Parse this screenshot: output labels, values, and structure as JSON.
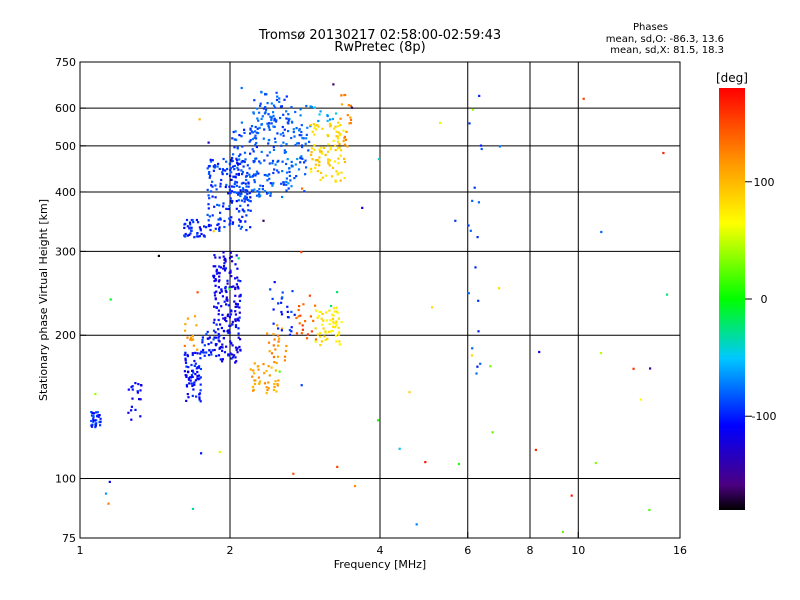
{
  "chart_data": {
    "type": "scatter",
    "title": "Tromsø 20130217 02:58:00-02:59:43",
    "subtitle": "RwPretec (8p)",
    "xlabel": "Frequency [MHz]",
    "ylabel": "Stationary phase Virtual Height [km]",
    "x_scale": "log",
    "y_scale": "log",
    "xlim": [
      1,
      16
    ],
    "ylim": [
      75,
      750
    ],
    "x_ticks": [
      "1",
      "2",
      "4",
      "6",
      "8",
      "10",
      "16"
    ],
    "x_tick_values": [
      1,
      2,
      4,
      6,
      8,
      10,
      16
    ],
    "y_ticks": [
      "75",
      "100",
      "200",
      "300",
      "400",
      "500",
      "600",
      "750"
    ],
    "y_tick_values": [
      75,
      100,
      200,
      300,
      400,
      500,
      600,
      750
    ],
    "x_gridlines": [
      2,
      4,
      6,
      8,
      10
    ],
    "y_gridlines": [
      100,
      200,
      300,
      400,
      500,
      600
    ],
    "grid": true,
    "colorbar": {
      "label": "[deg]",
      "range": [
        -180,
        180
      ],
      "ticks": [
        "100",
        "0",
        "-100"
      ],
      "tick_values": [
        100,
        0,
        -100
      ],
      "colormap": "rainbow"
    },
    "stats": {
      "heading": "Phases",
      "line_o": "mean, sd,O: -86.3, 13.6",
      "line_x": "mean, sd,X:  81.5, 18.3"
    },
    "clusters": [
      {
        "x": [
          1.05,
          1.1
        ],
        "y": [
          128,
          138
        ],
        "phase": -95,
        "n": 30
      },
      {
        "x": [
          1.25,
          1.35
        ],
        "y": [
          133,
          160
        ],
        "phase": -110,
        "n": 20
      },
      {
        "x": [
          1.62,
          1.75
        ],
        "y": [
          145,
          185
        ],
        "phase": -105,
        "n": 70
      },
      {
        "x": [
          1.62,
          1.75
        ],
        "y": [
          185,
          225
        ],
        "phase": 120,
        "n": 14
      },
      {
        "x": [
          1.75,
          1.9
        ],
        "y": [
          180,
          205
        ],
        "phase": -100,
        "n": 30
      },
      {
        "x": [
          1.6,
          1.8
        ],
        "y": [
          320,
          350
        ],
        "phase": -100,
        "n": 40
      },
      {
        "x": [
          1.85,
          2.1
        ],
        "y": [
          175,
          300
        ],
        "phase": -115,
        "n": 190
      },
      {
        "x": [
          1.8,
          2.2
        ],
        "y": [
          330,
          470
        ],
        "phase": -95,
        "n": 160
      },
      {
        "x": [
          2.0,
          2.3
        ],
        "y": [
          380,
          560
        ],
        "phase": -90,
        "n": 90
      },
      {
        "x": [
          2.2,
          2.6
        ],
        "y": [
          390,
          650
        ],
        "phase": -85,
        "n": 150
      },
      {
        "x": [
          2.6,
          2.9
        ],
        "y": [
          400,
          610
        ],
        "phase": -80,
        "n": 70
      },
      {
        "x": [
          2.2,
          2.5
        ],
        "y": [
          150,
          175
        ],
        "phase": 110,
        "n": 40
      },
      {
        "x": [
          2.3,
          2.6
        ],
        "y": [
          175,
          210
        ],
        "phase": 120,
        "n": 20
      },
      {
        "x": [
          2.4,
          2.7
        ],
        "y": [
          200,
          260
        ],
        "phase": -95,
        "n": 25
      },
      {
        "x": [
          2.7,
          3.0
        ],
        "y": [
          195,
          245
        ],
        "phase": 145,
        "n": 20
      },
      {
        "x": [
          2.95,
          3.35
        ],
        "y": [
          190,
          230
        ],
        "phase": 75,
        "n": 55
      },
      {
        "x": [
          2.9,
          3.4
        ],
        "y": [
          420,
          560
        ],
        "phase": 85,
        "n": 90
      },
      {
        "x": [
          3.3,
          3.5
        ],
        "y": [
          480,
          640
        ],
        "phase": 120,
        "n": 20
      },
      {
        "x": [
          2.85,
          3.3
        ],
        "y": [
          550,
          610
        ],
        "phase": -60,
        "n": 12
      },
      {
        "x": [
          6.0,
          6.4
        ],
        "y": [
          160,
          640
        ],
        "phase": -90,
        "n": 18
      },
      {
        "x": [
          1.0,
          16.0
        ],
        "y": [
          75,
          700
        ],
        "phase": 0,
        "n": 60,
        "random_phase": true
      }
    ]
  }
}
